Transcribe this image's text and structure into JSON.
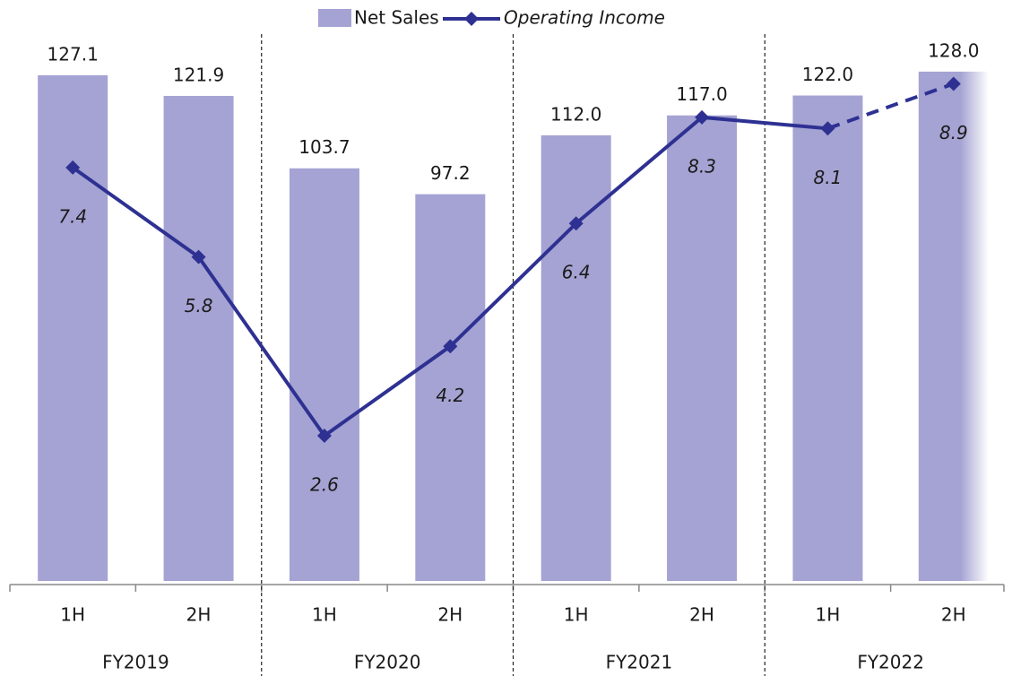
{
  "chart_data": {
    "type": "bar_line",
    "categories": [
      "1H",
      "2H",
      "1H",
      "2H",
      "1H",
      "2H",
      "1H",
      "2H"
    ],
    "groups": [
      "FY2019",
      "FY2020",
      "FY2021",
      "FY2022"
    ],
    "series": [
      {
        "name": "Net Sales",
        "type": "bar",
        "color": "#a5a3d3",
        "values": [
          127.1,
          121.9,
          103.7,
          97.2,
          112.0,
          117.0,
          122.0,
          128.0
        ],
        "value_labels": [
          "127.1",
          "121.9",
          "103.7",
          "97.2",
          "112.0",
          "117.0",
          "122.0",
          "128.0"
        ]
      },
      {
        "name": "Operating Income",
        "type": "line",
        "axis": "y2",
        "color": "#2e3192",
        "values": [
          7.4,
          5.8,
          2.6,
          4.2,
          6.4,
          8.3,
          8.1,
          8.9
        ]
      }
    ],
    "projected": [
      false,
      false,
      false,
      false,
      false,
      false,
      false,
      true
    ],
    "ylim": [
      0,
      146
    ],
    "y2lim": [
      0,
      10.4
    ],
    "grid": false,
    "legend": "top"
  }
}
